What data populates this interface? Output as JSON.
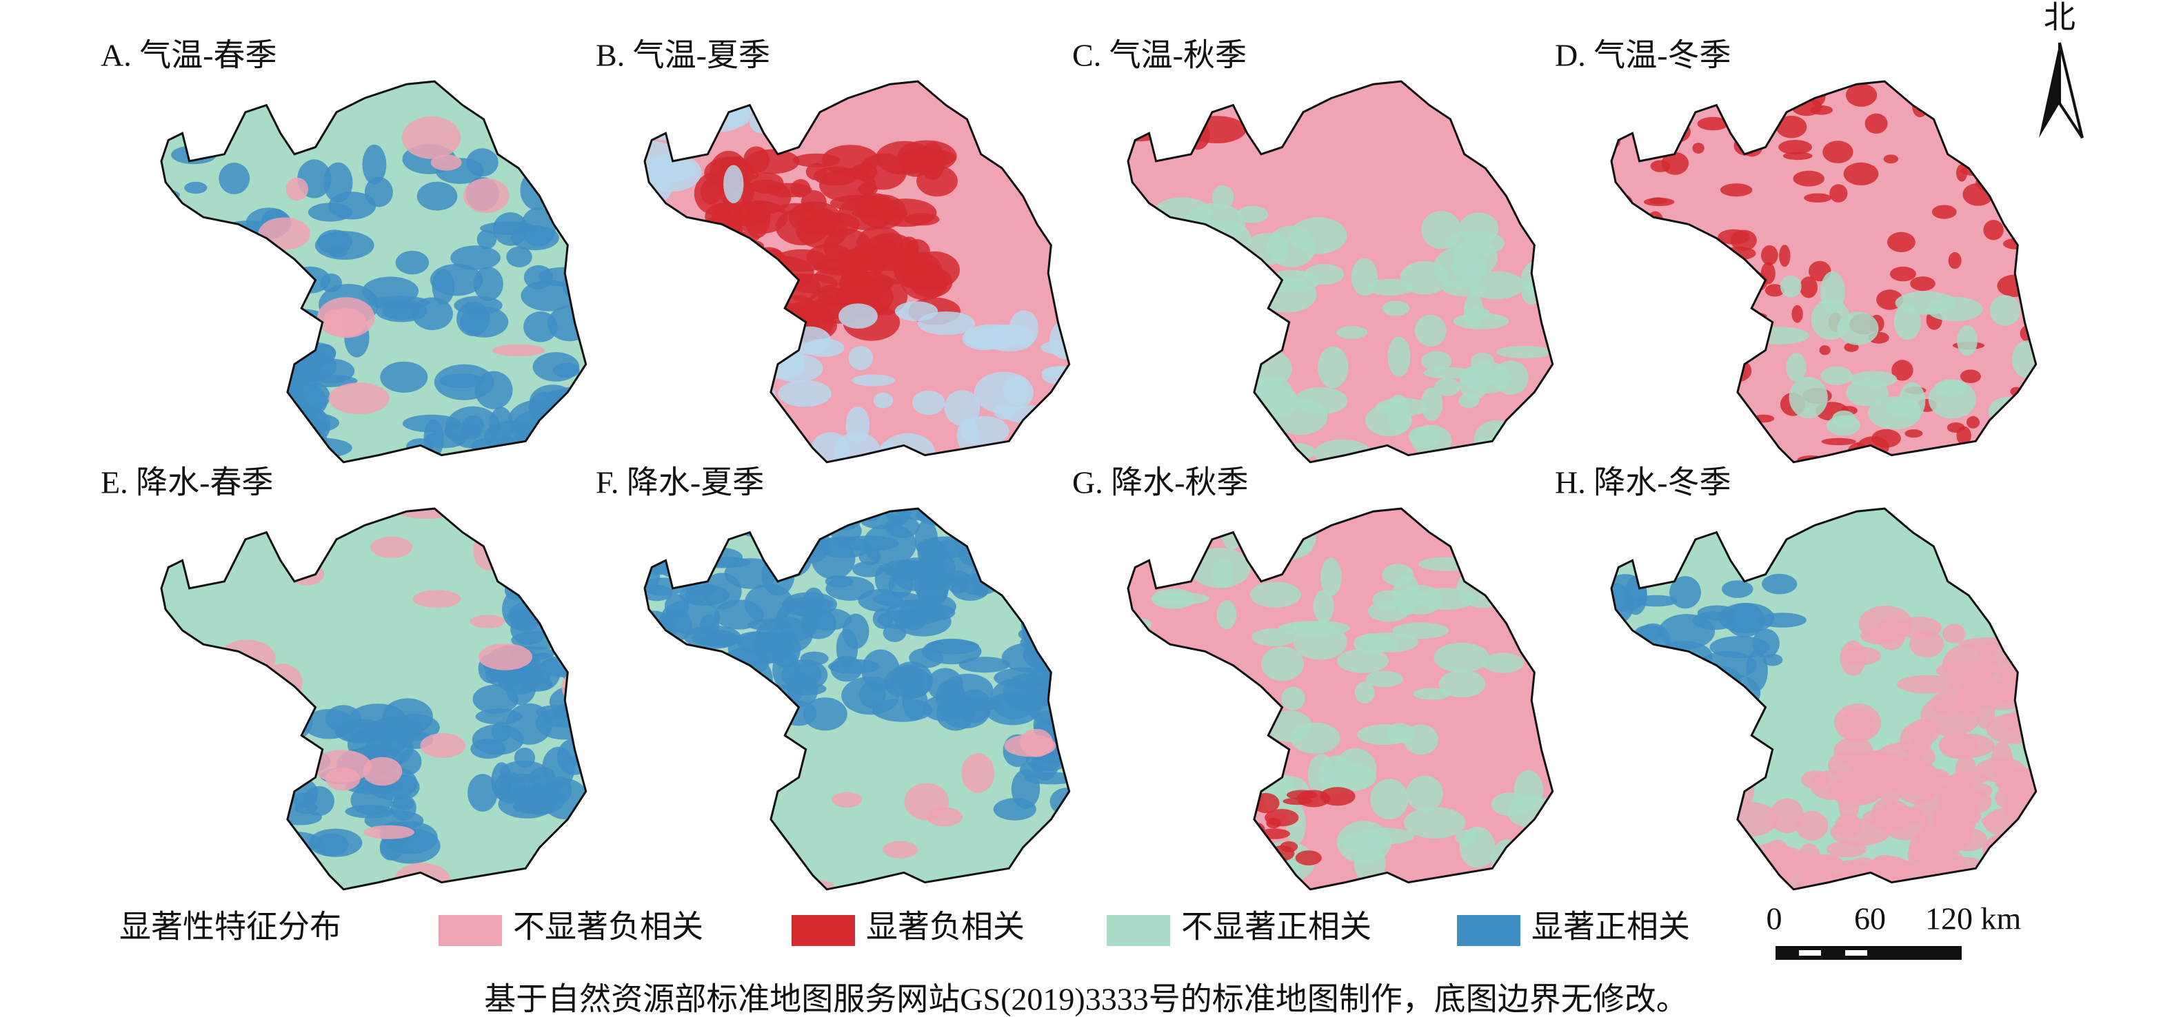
{
  "panels": [
    {
      "label": "A. 气温-春季"
    },
    {
      "label": "B. 气温-夏季"
    },
    {
      "label": "C. 气温-秋季"
    },
    {
      "label": "D. 气温-冬季"
    },
    {
      "label": "E. 降水-春季"
    },
    {
      "label": "F. 降水-夏季"
    },
    {
      "label": "G. 降水-秋季"
    },
    {
      "label": "H. 降水-冬季"
    }
  ],
  "north": "北",
  "legend": {
    "title": "显著性特征分布",
    "items": [
      {
        "label": "不显著负相关",
        "color": "#f0a3b3"
      },
      {
        "label": "显著负相关",
        "color": "#d42a30"
      },
      {
        "label": "不显著正相关",
        "color": "#a8dcc6"
      },
      {
        "label": "显著正相关",
        "color": "#3e8ec4"
      }
    ]
  },
  "scale_bar": {
    "labels": [
      "0",
      "60",
      "120 km"
    ]
  },
  "footnote": "基于自然资源部标准地图服务网站GS(2019)3333号的标准地图制作，底图边界无修改。"
}
